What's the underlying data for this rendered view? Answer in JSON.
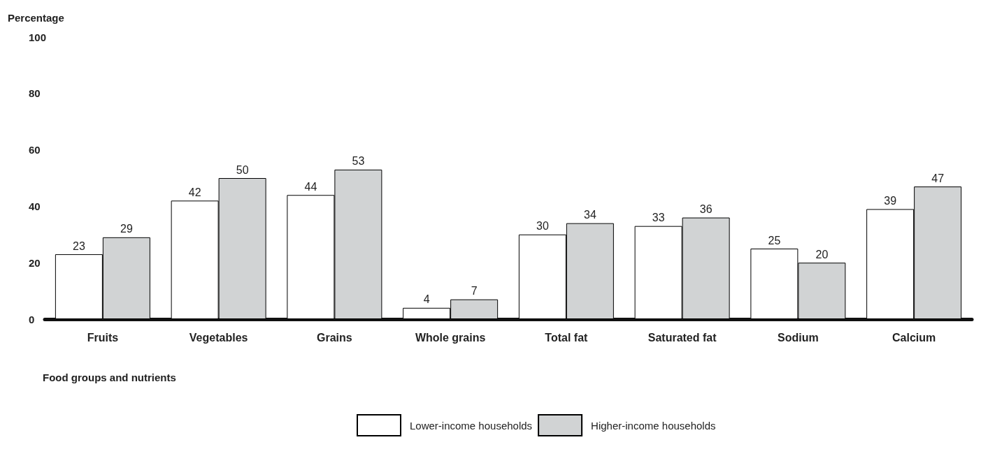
{
  "chart_data": {
    "type": "bar",
    "ylabel": "Percentage",
    "xlabel": "Food groups and nutrients",
    "categories": [
      "Fruits",
      "Vegetables",
      "Grains",
      "Whole grains",
      "Total fat",
      "Saturated fat",
      "Sodium",
      "Calcium"
    ],
    "series": [
      {
        "name": "Lower-income households",
        "color": "#ffffff",
        "values": [
          23,
          42,
          44,
          4,
          30,
          33,
          25,
          39
        ]
      },
      {
        "name": "Higher-income households",
        "color": "#d1d3d4",
        "values": [
          29,
          50,
          53,
          7,
          34,
          36,
          20,
          47
        ]
      }
    ],
    "ylim": [
      0,
      100
    ],
    "yticks": [
      0,
      20,
      40,
      60,
      80,
      100
    ],
    "grid": false,
    "legend": "bottom",
    "data_labels": true
  }
}
